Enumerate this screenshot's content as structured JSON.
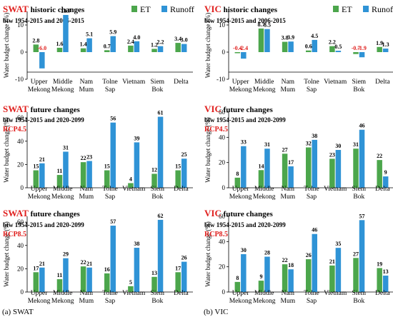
{
  "captions": {
    "left": "(a) SWAT",
    "right": "(b) VIC"
  },
  "colors": {
    "et": "#4CA64C",
    "runoff": "#2F93D6",
    "highlight": "#E0201E",
    "neg_label": "#E0201E"
  },
  "chart_data": [
    {
      "type": "bar",
      "model": "SWAT",
      "title_rest": " historic changes",
      "subtitle": "btw 1954-2015 and 2006-2015",
      "rcp": "",
      "ylabel": "Water budget change (%)",
      "ylim": [
        -10,
        15
      ],
      "yticks": [
        -10,
        0,
        10
      ],
      "yticks_labels": [
        "-10",
        "0",
        "10"
      ],
      "categories": [
        [
          "Upper",
          "Mekong"
        ],
        [
          "Middle",
          "Mekong"
        ],
        [
          "Nam",
          "Mum"
        ],
        [
          "Tolne",
          "Sap"
        ],
        [
          "Vietnam"
        ],
        [
          "Siem",
          "Bok"
        ],
        [
          "Delta"
        ]
      ],
      "series": [
        {
          "name": "ET",
          "values": [
            2.8,
            1.6,
            1.4,
            0.7,
            2.4,
            1.2,
            3.4
          ]
        },
        {
          "name": "Runoff",
          "values": [
            -6.0,
            13.7,
            5.1,
            5.9,
            4.0,
            2.2,
            3.0
          ]
        }
      ],
      "value_labels": [
        [
          "2.8",
          "-6.0"
        ],
        [
          "1.6",
          "13.7"
        ],
        [
          "1.4",
          "5.1"
        ],
        [
          "0.7",
          "5.9"
        ],
        [
          "2.4",
          "4.0"
        ],
        [
          "1.2",
          "2.2"
        ],
        [
          "3.4",
          "3.0"
        ]
      ],
      "legend": true
    },
    {
      "type": "bar",
      "model": "VIC",
      "title_rest": " historic changes",
      "subtitle": "btw 1954-2015 and 2006-2015",
      "rcp": "",
      "ylabel": "Water budget change (%)",
      "ylim": [
        -10,
        15
      ],
      "yticks": [
        -10,
        0,
        10
      ],
      "yticks_labels": [
        "-10",
        "0",
        "10"
      ],
      "categories": [
        [
          "Upper",
          "Mekong"
        ],
        [
          "Middle",
          "Mekong"
        ],
        [
          "Nam",
          "Mum"
        ],
        [
          "Tolne",
          "Sap"
        ],
        [
          "Vietnam"
        ],
        [
          "Siem",
          "Bok"
        ],
        [
          "Delta"
        ]
      ],
      "series": [
        {
          "name": "ET",
          "values": [
            -0.4,
            8.7,
            3.8,
            0.6,
            2.2,
            -0.7,
            1.9
          ]
        },
        {
          "name": "Runoff",
          "values": [
            -2.4,
            8.5,
            3.9,
            4.5,
            0.5,
            -1.9,
            1.3
          ]
        }
      ],
      "value_labels": [
        [
          "-0.4",
          "-2.4"
        ],
        [
          "8.7",
          "8.5"
        ],
        [
          "3.8",
          "3.9"
        ],
        [
          "0.6",
          "4.5"
        ],
        [
          "2.2",
          "0.5"
        ],
        [
          "-0.7",
          "-1.9"
        ],
        [
          "1.9",
          "1.3"
        ]
      ],
      "legend": true
    },
    {
      "type": "bar",
      "model": "SWAT",
      "title_rest": " future changes",
      "subtitle": "btw 1954-2015 and 2020-2099",
      "rcp": "RCP4.5",
      "ylabel": "Water budget change (%)",
      "ylim": [
        0,
        65
      ],
      "yticks": [
        0,
        20,
        40,
        60
      ],
      "yticks_labels": [
        "0",
        "20",
        "40",
        "60"
      ],
      "categories": [
        [
          "Upper",
          "Mekong"
        ],
        [
          "Middle",
          "Mekong"
        ],
        [
          "Nam",
          "Mum"
        ],
        [
          "Tolne",
          "Sap"
        ],
        [
          "Vietnam"
        ],
        [
          "Siem",
          "Bok"
        ],
        [
          "Delta"
        ]
      ],
      "series": [
        {
          "name": "ET",
          "values": [
            15,
            11,
            22,
            15,
            4,
            12,
            15
          ]
        },
        {
          "name": "Runoff",
          "values": [
            21,
            31,
            23,
            56,
            39,
            61,
            25
          ]
        }
      ],
      "value_labels": [
        [
          "15",
          "21"
        ],
        [
          "11",
          "31"
        ],
        [
          "22",
          "23"
        ],
        [
          "15",
          "56"
        ],
        [
          "4",
          "39"
        ],
        [
          "12",
          "61"
        ],
        [
          "15",
          "25"
        ]
      ],
      "legend": false
    },
    {
      "type": "bar",
      "model": "VIC",
      "title_rest": " future changes",
      "subtitle": "btw 1954-2015 and 2020-2099",
      "rcp": "RCP4.5",
      "ylabel": "Water budget change (%)",
      "ylim": [
        0,
        60
      ],
      "yticks": [
        0,
        20,
        40,
        60
      ],
      "yticks_labels": [
        "0",
        "20",
        "40",
        "60"
      ],
      "categories": [
        [
          "Upper",
          "Mekong"
        ],
        [
          "Middle",
          "Mekong"
        ],
        [
          "Nam",
          "Mum"
        ],
        [
          "Tolne",
          "Sap"
        ],
        [
          "Vietnam"
        ],
        [
          "Siem",
          "Bok"
        ],
        [
          "Delta"
        ]
      ],
      "series": [
        {
          "name": "ET",
          "values": [
            8,
            14,
            27,
            32,
            23,
            31,
            22
          ]
        },
        {
          "name": "Runoff",
          "values": [
            33,
            31,
            17,
            38,
            30,
            46,
            9
          ]
        }
      ],
      "value_labels": [
        [
          "8",
          "33"
        ],
        [
          "14",
          "31"
        ],
        [
          "27",
          "17"
        ],
        [
          "32",
          "38"
        ],
        [
          "23",
          "30"
        ],
        [
          "31",
          "46"
        ],
        [
          "22",
          "9"
        ]
      ],
      "legend": false
    },
    {
      "type": "bar",
      "model": "SWAT",
      "title_rest": " future changes",
      "subtitle": "btw 1954-2015 and 2020-2099",
      "rcp": "RCP8.5",
      "ylabel": "Water budget change (%)",
      "ylim": [
        0,
        65
      ],
      "yticks": [
        0,
        20,
        40,
        60
      ],
      "yticks_labels": [
        "0",
        "20",
        "40",
        "60"
      ],
      "categories": [
        [
          "Upper",
          "Mekong"
        ],
        [
          "Middle",
          "Mekong"
        ],
        [
          "Nam",
          "Mum"
        ],
        [
          "Tolne",
          "Sap"
        ],
        [
          "Vietnam"
        ],
        [
          "Siem",
          "Bok"
        ],
        [
          "Delta"
        ]
      ],
      "series": [
        {
          "name": "ET",
          "values": [
            17,
            11,
            22,
            16,
            5,
            13,
            17
          ]
        },
        {
          "name": "Runoff",
          "values": [
            21,
            29,
            21,
            57,
            38,
            62,
            26
          ]
        }
      ],
      "value_labels": [
        [
          "17",
          "21"
        ],
        [
          "11",
          "29"
        ],
        [
          "22",
          "21"
        ],
        [
          "16",
          "57"
        ],
        [
          "5",
          "38"
        ],
        [
          "13",
          "62"
        ],
        [
          "17",
          "26"
        ]
      ],
      "legend": false
    },
    {
      "type": "bar",
      "model": "VIC",
      "title_rest": " future changes",
      "subtitle": "btw 1954-2015 and 2020-2099",
      "rcp": "RCP8.5",
      "ylabel": "Water budget change (%)",
      "ylim": [
        0,
        60
      ],
      "yticks": [
        0,
        20,
        40,
        60
      ],
      "yticks_labels": [
        "0",
        "20",
        "40",
        "60"
      ],
      "categories": [
        [
          "Upper",
          "Mekong"
        ],
        [
          "Middle",
          "Mekong"
        ],
        [
          "Nam",
          "Mum"
        ],
        [
          "Tolne",
          "Sap"
        ],
        [
          "Vietnam"
        ],
        [
          "Siem",
          "Bok"
        ],
        [
          "Delta"
        ]
      ],
      "series": [
        {
          "name": "ET",
          "values": [
            8,
            9,
            22,
            26,
            21,
            27,
            19
          ]
        },
        {
          "name": "Runoff",
          "values": [
            30,
            28,
            18,
            46,
            35,
            57,
            13
          ]
        }
      ],
      "value_labels": [
        [
          "8",
          "30"
        ],
        [
          "9",
          "28"
        ],
        [
          "22",
          "18"
        ],
        [
          "26",
          "46"
        ],
        [
          "21",
          "35"
        ],
        [
          "27",
          "57"
        ],
        [
          "19",
          "13"
        ]
      ],
      "legend": false
    }
  ]
}
